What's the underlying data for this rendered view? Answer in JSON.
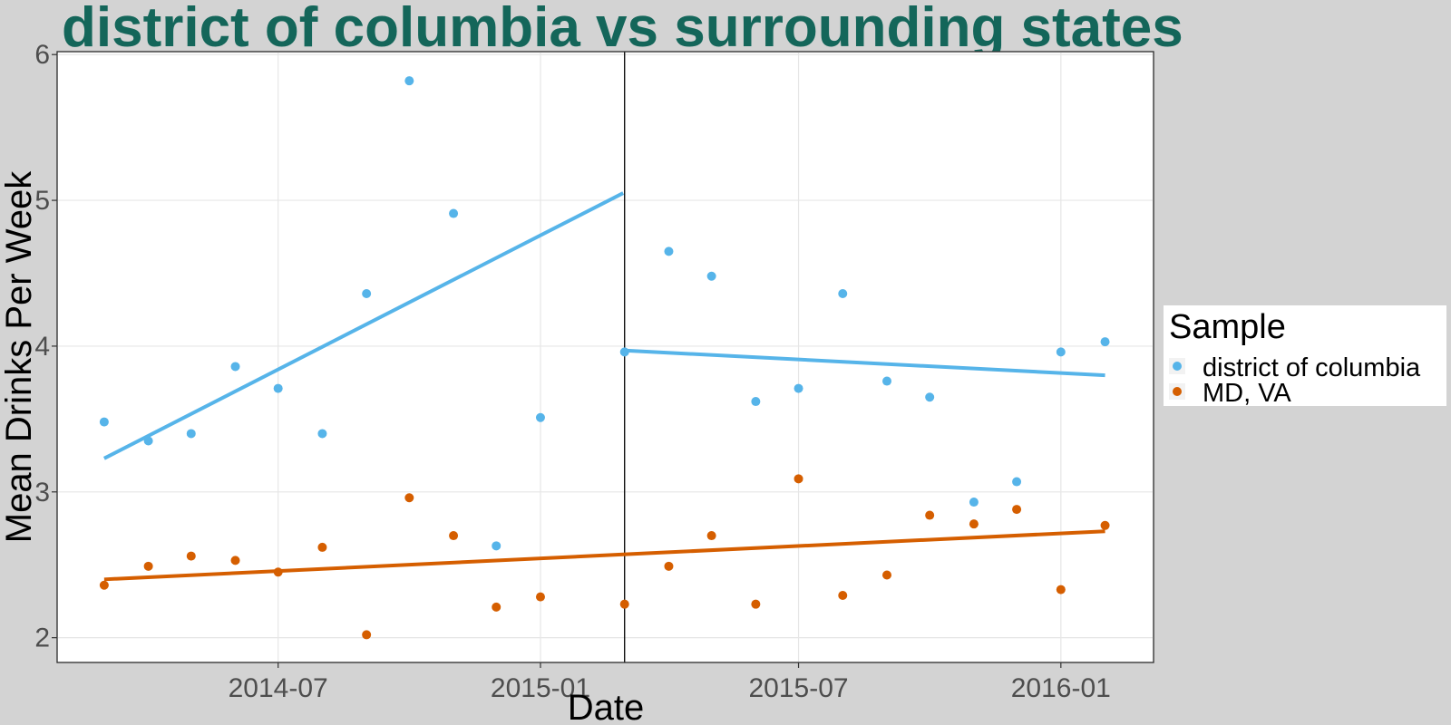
{
  "chart_data": {
    "type": "scatter",
    "title": "district of columbia vs surrounding states",
    "xlabel": "Date",
    "ylabel": "Mean Drinks Per Week",
    "x_ticks": [
      "2014-07",
      "2015-01",
      "2015-07",
      "2016-01"
    ],
    "y_ticks": [
      "2",
      "3",
      "4",
      "5",
      "6"
    ],
    "ylim": [
      1.83,
      6.02
    ],
    "xlim": [
      "2014-01-27",
      "2016-03-06"
    ],
    "grid": true,
    "legend": {
      "title": "Sample",
      "position": "right"
    },
    "vline_date": "2015-03-01",
    "series": [
      {
        "name": "district of columbia",
        "color": "#56b4e9",
        "points": [
          {
            "x": "2014-03-01",
            "y": 3.48
          },
          {
            "x": "2014-04-01",
            "y": 3.35
          },
          {
            "x": "2014-05-01",
            "y": 3.4
          },
          {
            "x": "2014-06-01",
            "y": 3.86
          },
          {
            "x": "2014-07-01",
            "y": 3.71
          },
          {
            "x": "2014-08-01",
            "y": 3.4
          },
          {
            "x": "2014-09-01",
            "y": 4.36
          },
          {
            "x": "2014-10-01",
            "y": 5.82
          },
          {
            "x": "2014-11-01",
            "y": 4.91
          },
          {
            "x": "2014-12-01",
            "y": 2.63
          },
          {
            "x": "2015-01-01",
            "y": 3.51
          },
          {
            "x": "2015-03-01",
            "y": 3.96
          },
          {
            "x": "2015-04-01",
            "y": 4.65
          },
          {
            "x": "2015-05-01",
            "y": 4.48
          },
          {
            "x": "2015-06-01",
            "y": 3.62
          },
          {
            "x": "2015-07-01",
            "y": 3.71
          },
          {
            "x": "2015-08-01",
            "y": 4.36
          },
          {
            "x": "2015-09-01",
            "y": 3.76
          },
          {
            "x": "2015-10-01",
            "y": 3.65
          },
          {
            "x": "2015-11-01",
            "y": 2.93
          },
          {
            "x": "2015-12-01",
            "y": 3.07
          },
          {
            "x": "2016-01-01",
            "y": 3.96
          },
          {
            "x": "2016-02-01",
            "y": 4.03
          }
        ],
        "trend": [
          {
            "from": {
              "x": "2014-03-01",
              "y": 3.23
            },
            "to": {
              "x": "2015-02-28",
              "y": 5.05
            }
          },
          {
            "from": {
              "x": "2015-03-01",
              "y": 3.97
            },
            "to": {
              "x": "2016-02-01",
              "y": 3.8
            }
          }
        ]
      },
      {
        "name": "MD, VA",
        "color": "#d55e00",
        "points": [
          {
            "x": "2014-03-01",
            "y": 2.36
          },
          {
            "x": "2014-04-01",
            "y": 2.49
          },
          {
            "x": "2014-05-01",
            "y": 2.56
          },
          {
            "x": "2014-06-01",
            "y": 2.53
          },
          {
            "x": "2014-07-01",
            "y": 2.45
          },
          {
            "x": "2014-08-01",
            "y": 2.62
          },
          {
            "x": "2014-09-01",
            "y": 2.02
          },
          {
            "x": "2014-10-01",
            "y": 2.96
          },
          {
            "x": "2014-11-01",
            "y": 2.7
          },
          {
            "x": "2014-12-01",
            "y": 2.21
          },
          {
            "x": "2015-01-01",
            "y": 2.28
          },
          {
            "x": "2015-03-01",
            "y": 2.23
          },
          {
            "x": "2015-04-01",
            "y": 2.49
          },
          {
            "x": "2015-05-01",
            "y": 2.7
          },
          {
            "x": "2015-06-01",
            "y": 2.23
          },
          {
            "x": "2015-07-01",
            "y": 3.09
          },
          {
            "x": "2015-08-01",
            "y": 2.29
          },
          {
            "x": "2015-09-01",
            "y": 2.43
          },
          {
            "x": "2015-10-01",
            "y": 2.84
          },
          {
            "x": "2015-11-01",
            "y": 2.78
          },
          {
            "x": "2015-12-01",
            "y": 2.88
          },
          {
            "x": "2016-01-01",
            "y": 2.33
          },
          {
            "x": "2016-02-01",
            "y": 2.77
          }
        ],
        "trend": [
          {
            "from": {
              "x": "2014-03-01",
              "y": 2.4
            },
            "to": {
              "x": "2016-02-01",
              "y": 2.73
            }
          }
        ]
      }
    ]
  }
}
